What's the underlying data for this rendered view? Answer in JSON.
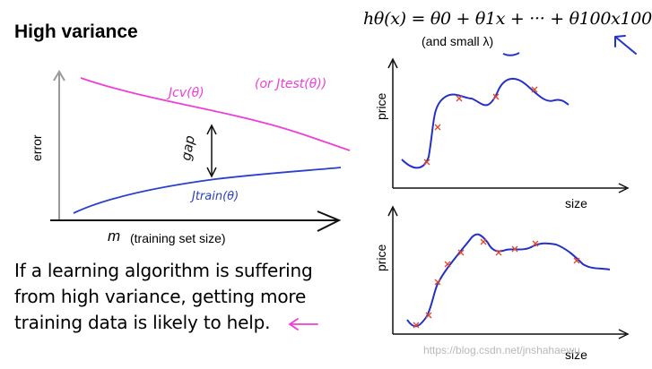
{
  "slide": {
    "title": "High variance",
    "formula": "hθ(x) = θ0 + θ1x + ··· + θ100x100",
    "formula_note": "(and small λ)",
    "statement_lines": [
      "If a learning algorithm is suffering",
      "from high variance, getting more",
      "training data is likely to help."
    ],
    "watermark": "https://blog.csdn.net/jnshahaewu"
  },
  "learning_curve": {
    "ylabel": "error",
    "xlabel_symbol": "m",
    "xlabel_text": "(training set size)",
    "cv_label": "Jcv(θ)",
    "test_label": "(or Jtest(θ))",
    "train_label": "Jtrain(θ)",
    "gap_label": "gap",
    "colors": {
      "cv": "#ee3fd6",
      "train": "#2b40cc",
      "axis": "#9a9a9a"
    }
  },
  "top_plot": {
    "ylabel": "price",
    "xlabel": "size"
  },
  "bottom_plot": {
    "ylabel": "price",
    "xlabel": "size"
  },
  "colors": {
    "fit_curve": "#2430c8",
    "points": "#e04a2a",
    "annotation": "#2233cc",
    "pink_arrow": "#ee3fd6"
  }
}
